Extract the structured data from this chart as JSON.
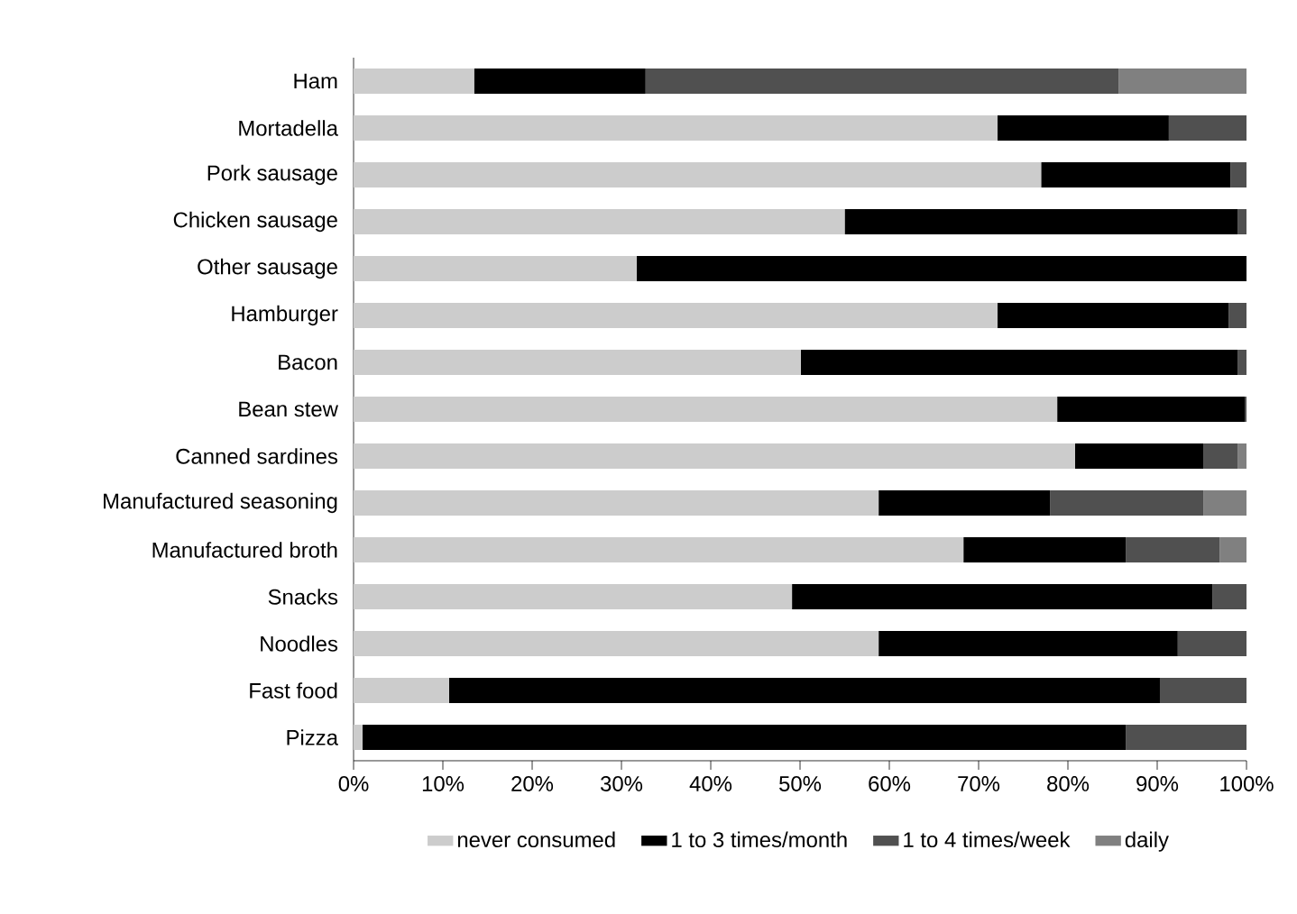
{
  "chart_data": {
    "type": "bar",
    "orientation": "horizontal",
    "stacked": true,
    "legend": "bottom",
    "grid": false,
    "categories": [
      "Ham",
      "Mortadella",
      "Pork sausage",
      "Chicken sausage",
      "Other sausage",
      "Hamburger",
      "Bacon",
      "Bean stew",
      "Canned sardines",
      "Manufactured seasoning",
      "Manufactured broth",
      "Snacks",
      "Noodles",
      "Fast food",
      "Pizza"
    ],
    "xlim": [
      0,
      100
    ],
    "xticks": [
      {
        "value": 0,
        "label": "0%"
      },
      {
        "value": 10,
        "label": "10%"
      },
      {
        "value": 20,
        "label": "20%"
      },
      {
        "value": 30,
        "label": "30%"
      },
      {
        "value": 40,
        "label": "40%"
      },
      {
        "value": 50,
        "label": "50%"
      },
      {
        "value": 60,
        "label": "60%"
      },
      {
        "value": 70,
        "label": "70%"
      },
      {
        "value": 80,
        "label": "80%"
      },
      {
        "value": 90,
        "label": "90%"
      },
      {
        "value": 100,
        "label": "100%"
      }
    ],
    "series": [
      {
        "name": "never consumed",
        "color": "#cccccc",
        "values": [
          13.5,
          72.1,
          77.0,
          55.0,
          31.7,
          72.1,
          50.1,
          78.8,
          80.8,
          58.8,
          68.3,
          49.1,
          58.8,
          10.7,
          1.0
        ]
      },
      {
        "name": "1 to 3 times/month",
        "color": "#000000",
        "values": [
          19.2,
          19.2,
          21.2,
          44.0,
          68.3,
          25.9,
          48.9,
          21.0,
          14.4,
          19.2,
          18.2,
          47.1,
          33.5,
          79.6,
          85.5
        ]
      },
      {
        "name": "1 to 4 times/week",
        "color": "#505050",
        "values": [
          53.0,
          8.7,
          1.8,
          1.0,
          0,
          2.0,
          1.0,
          0.2,
          3.8,
          17.2,
          10.5,
          3.8,
          7.7,
          9.7,
          13.5
        ]
      },
      {
        "name": "daily",
        "color": "#808080",
        "values": [
          14.3,
          0,
          0,
          0,
          0,
          0,
          0,
          0,
          1.0,
          4.8,
          3.0,
          0,
          0,
          0,
          0
        ]
      }
    ]
  }
}
